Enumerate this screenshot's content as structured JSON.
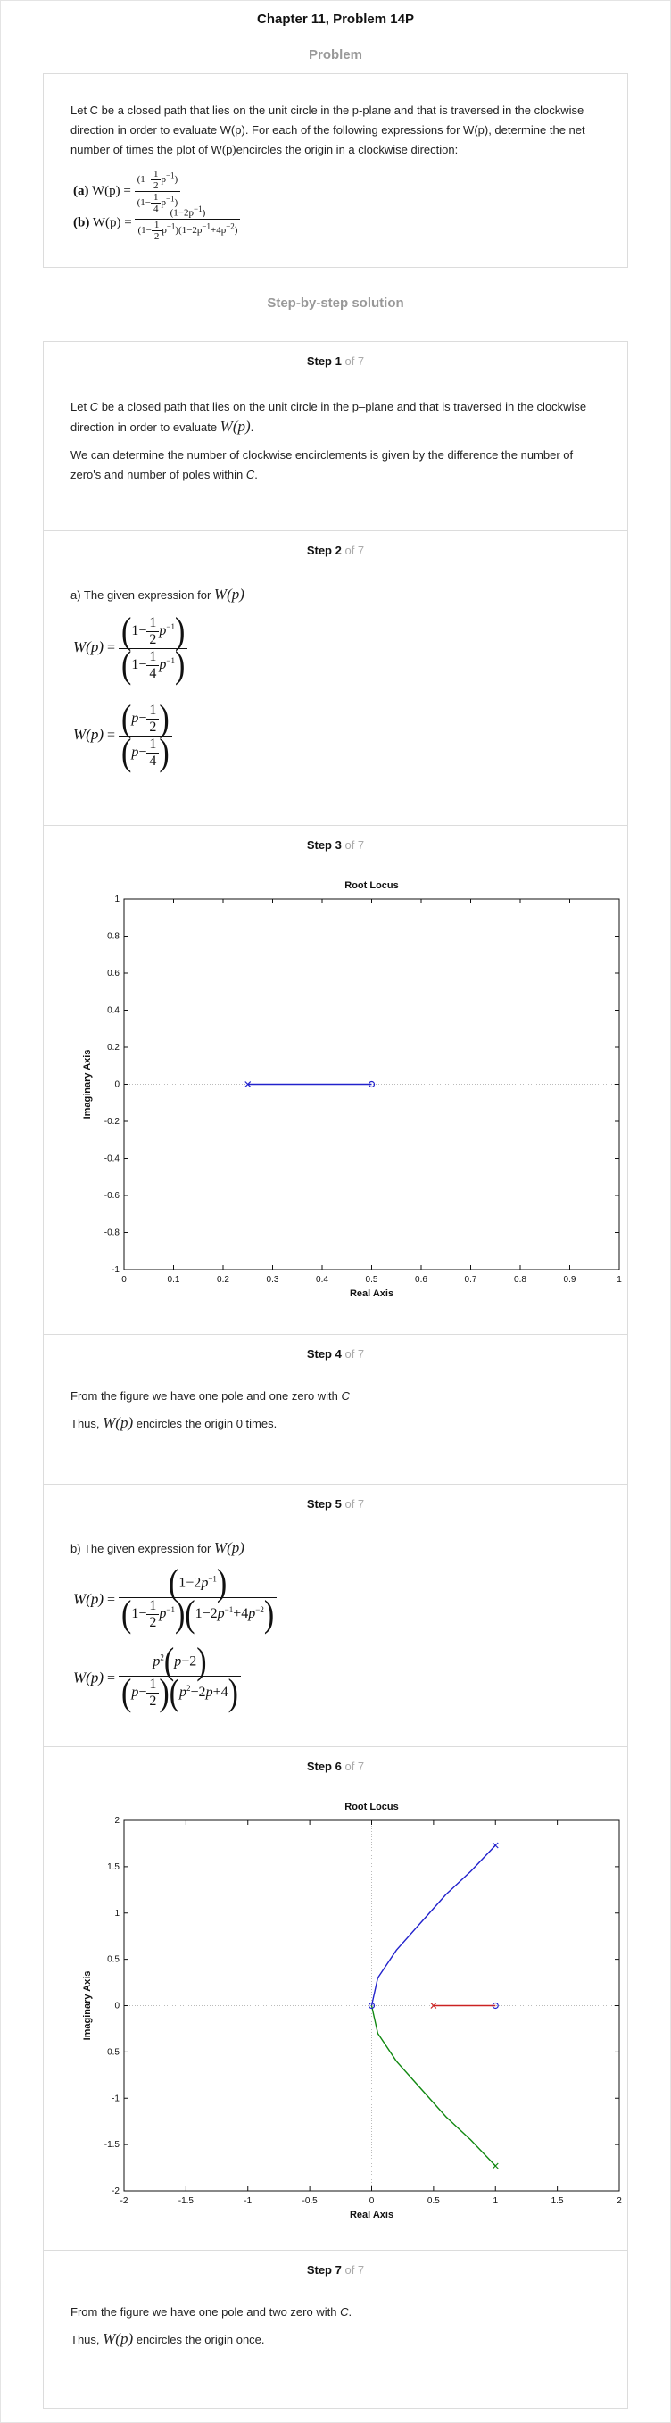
{
  "header": {
    "chapter_title": "Chapter 11, Problem 14P",
    "problem_heading": "Problem",
    "solution_heading": "Step-by-step solution"
  },
  "problem": {
    "text": "Let C be a closed path that lies on the unit circle in the p-plane and that is traversed in the clockwise direction in order to evaluate W(p). For each of the following expressions for W(p), determine the net number of times the plot of W(p)encircles the origin in a clockwise direction:",
    "part_a_label": "(a)",
    "part_b_label": "(b)",
    "wp": "W(p) ="
  },
  "step_of": "of 7",
  "steps": [
    {
      "label": "Step 1",
      "p1a": "Let ",
      "p1b": "C",
      "p1c": " be a closed path that lies on the unit circle in the p–plane and that is traversed in the clockwise direction in order to evaluate ",
      "p1d": "W(p)",
      "p1e": ".",
      "p2a": "We can determine the number of clockwise encirclements is given by the difference the number of zero's and number of poles within ",
      "p2b": "C",
      "p2c": "."
    },
    {
      "label": "Step 2",
      "intro": "a) The given expression for ",
      "wp": "W(p)",
      "eq": "="
    },
    {
      "label": "Step 3"
    },
    {
      "label": "Step 4",
      "p1a": "From the figure we have one pole and one zero with ",
      "p1b": "C",
      "p2a": "Thus, ",
      "p2b": "W(p)",
      "p2c": " encircles the origin 0 times."
    },
    {
      "label": "Step 5",
      "intro": "b) The given expression for ",
      "wp": "W(p)",
      "eq": "="
    },
    {
      "label": "Step 6"
    },
    {
      "label": "Step 7",
      "p1a": "From the figure we have one pole and two zero with ",
      "p1b": "C",
      "p1c": ".",
      "p2a": "Thus, ",
      "p2b": "W(p)",
      "p2c": " encircles the origin once."
    }
  ],
  "chart_data": [
    {
      "type": "line",
      "title": "Root Locus",
      "xlabel": "Real Axis",
      "ylabel": "Imaginary Axis",
      "xlim": [
        0,
        1
      ],
      "ylim": [
        -1,
        1
      ],
      "xticks": [
        "0",
        "0.1",
        "0.2",
        "0.3",
        "0.4",
        "0.5",
        "0.6",
        "0.7",
        "0.8",
        "0.9",
        "1"
      ],
      "yticks": [
        "1",
        "0.8",
        "0.6",
        "0.4",
        "0.2",
        "0",
        "-0.2",
        "-0.4",
        "-0.6",
        "-0.8",
        "-1"
      ],
      "series": [
        {
          "color": "#2222cc",
          "points": [
            [
              0.25,
              0
            ],
            [
              0.5,
              0
            ]
          ]
        }
      ],
      "markers": [
        {
          "x": 0.25,
          "y": 0,
          "shape": "x",
          "color": "#2222cc"
        },
        {
          "x": 0.5,
          "y": 0,
          "shape": "o",
          "color": "#2222cc"
        }
      ]
    },
    {
      "type": "line",
      "title": "Root Locus",
      "xlabel": "Real Axis",
      "ylabel": "Imaginary Axis",
      "xlim": [
        -2,
        2
      ],
      "ylim": [
        -2,
        2
      ],
      "xticks": [
        "-2",
        "-1.5",
        "-1",
        "-0.5",
        "0",
        "0.5",
        "1",
        "1.5",
        "2"
      ],
      "yticks": [
        "2",
        "1.5",
        "1",
        "0.5",
        "0",
        "-0.5",
        "-1",
        "-1.5",
        "-2"
      ],
      "series": [
        {
          "color": "#2222cc",
          "points": [
            [
              0,
              0
            ],
            [
              0.05,
              0.3
            ],
            [
              0.2,
              0.6
            ],
            [
              0.4,
              0.9
            ],
            [
              0.6,
              1.2
            ],
            [
              0.8,
              1.45
            ],
            [
              1.0,
              1.73
            ]
          ]
        },
        {
          "color": "#118811",
          "points": [
            [
              0,
              0
            ],
            [
              0.05,
              -0.3
            ],
            [
              0.2,
              -0.6
            ],
            [
              0.4,
              -0.9
            ],
            [
              0.6,
              -1.2
            ],
            [
              0.8,
              -1.45
            ],
            [
              1.0,
              -1.73
            ]
          ]
        },
        {
          "color": "#cc2222",
          "points": [
            [
              0.5,
              0
            ],
            [
              1.0,
              0
            ]
          ]
        }
      ],
      "markers": [
        {
          "x": 0,
          "y": 0,
          "shape": "o",
          "color": "#2222cc"
        },
        {
          "x": 0.5,
          "y": 0,
          "shape": "x",
          "color": "#cc2222"
        },
        {
          "x": 1.0,
          "y": 0,
          "shape": "o",
          "color": "#2222cc"
        },
        {
          "x": 1.0,
          "y": 1.73,
          "shape": "x",
          "color": "#2222cc"
        },
        {
          "x": 1.0,
          "y": -1.73,
          "shape": "x",
          "color": "#118811"
        }
      ]
    }
  ]
}
